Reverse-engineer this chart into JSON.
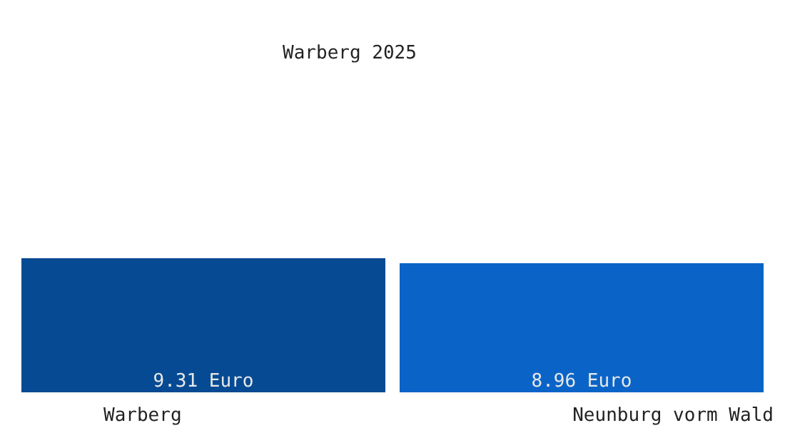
{
  "chart_data": {
    "type": "bar",
    "title": "Warberg 2025",
    "categories": [
      "Warberg",
      "Neunburg vorm Wald"
    ],
    "values": [
      9.31,
      8.96
    ],
    "colors": [
      "#064a93",
      "#0a64c8"
    ],
    "value_labels": [
      "9.31 Euro",
      "8.96 Euro"
    ],
    "grid": false,
    "legend": false
  }
}
